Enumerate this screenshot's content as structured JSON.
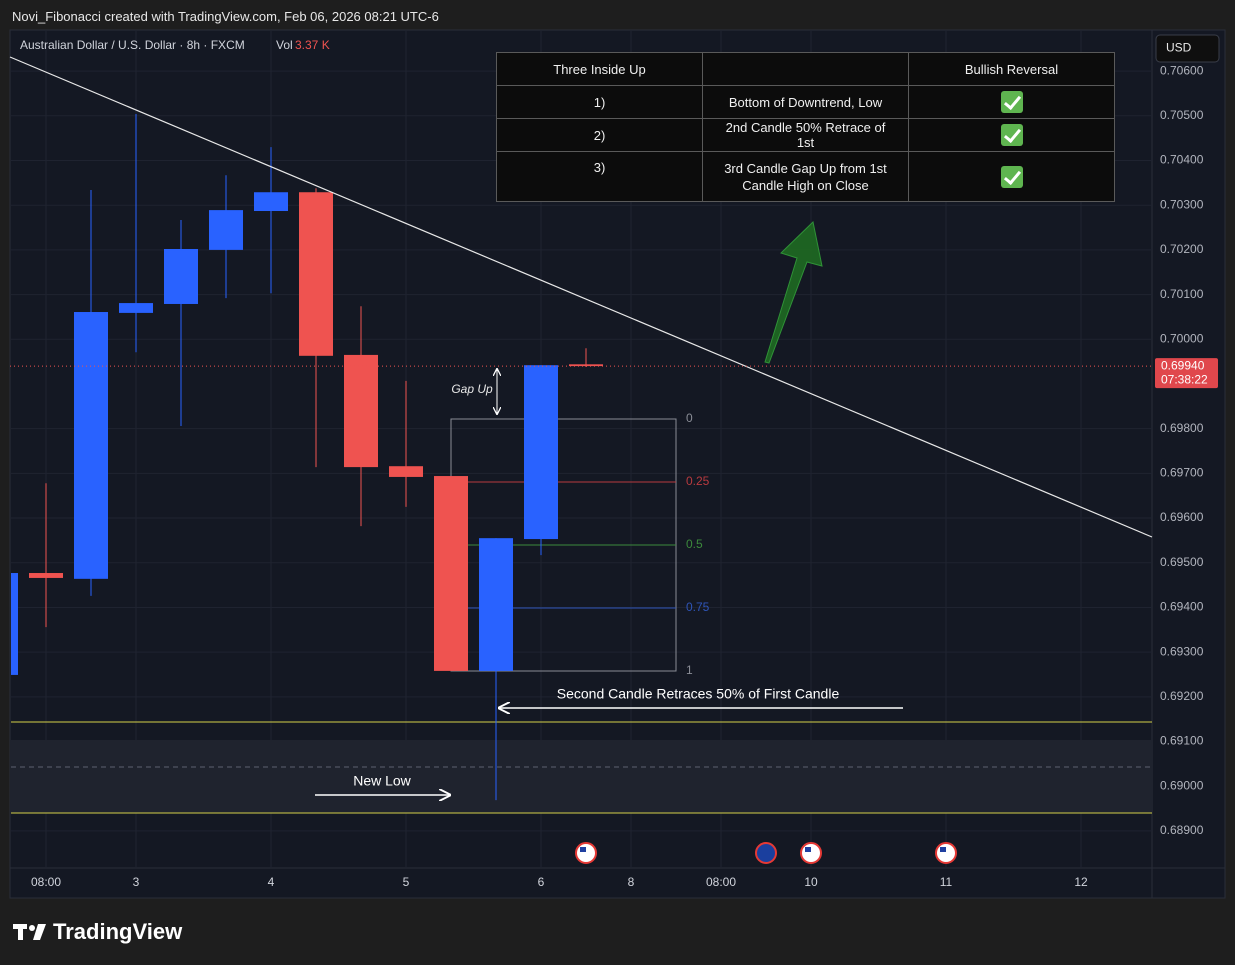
{
  "header": {
    "credit": "Novi_Fibonacci created with TradingView.com, Feb 06, 2026 08:21 UTC-6"
  },
  "chart_data": {
    "type": "candlestick",
    "symbol": "Australian Dollar / U.S. Dollar · 8h · FXCM",
    "volume_label": "Vol",
    "volume": "3.37 K",
    "currency": "USD",
    "categories": [
      null,
      "08:00",
      null,
      "3",
      null,
      null,
      "4",
      null,
      null,
      "5",
      null,
      null,
      "6",
      null,
      "8",
      null,
      "08:00",
      null,
      "10",
      null,
      null,
      "11",
      null,
      null,
      "12",
      null
    ],
    "open": [
      0.69249,
      0.69477,
      0.69464,
      0.70059,
      0.70079,
      0.702,
      0.70287,
      0.70329,
      0.69965,
      0.69716,
      0.69694,
      0.69258,
      0.69553,
      0.69944,
      null,
      null,
      null,
      null,
      null,
      null,
      null,
      null,
      null,
      null,
      null,
      null
    ],
    "high": [
      0.69477,
      0.69678,
      0.70334,
      0.70504,
      0.70267,
      0.70367,
      0.7043,
      0.70338,
      0.70074,
      0.69907,
      0.69694,
      0.69555,
      0.69942,
      0.6998,
      null,
      null,
      null,
      null,
      null,
      null,
      null,
      null,
      null,
      null,
      null,
      null
    ],
    "low": [
      0.69249,
      0.69356,
      0.69426,
      0.69971,
      0.69806,
      0.70092,
      0.70103,
      0.69714,
      0.69582,
      0.69625,
      0.69258,
      0.68969,
      0.69517,
      0.69938,
      null,
      null,
      null,
      null,
      null,
      null,
      null,
      null,
      null,
      null,
      null,
      null
    ],
    "close": [
      0.69477,
      0.69466,
      0.70061,
      0.70081,
      0.70202,
      0.70289,
      0.70329,
      0.69963,
      0.69714,
      0.69692,
      0.69258,
      0.69555,
      0.69942,
      0.6994,
      null,
      null,
      null,
      null,
      null,
      null,
      null,
      null,
      null,
      null,
      null,
      null
    ],
    "up_color": "#2962ff",
    "down_color": "#ef5350",
    "ylim": [
      0.68817,
      0.70692
    ],
    "yticks": [
      {
        "value": 0.706,
        "label": "0.70600"
      },
      {
        "value": 0.705,
        "label": "0.70500"
      },
      {
        "value": 0.704,
        "label": "0.70400"
      },
      {
        "value": 0.703,
        "label": "0.70300"
      },
      {
        "value": 0.702,
        "label": "0.70200"
      },
      {
        "value": 0.701,
        "label": "0.70100"
      },
      {
        "value": 0.7,
        "label": "0.70000"
      },
      {
        "value": 0.698,
        "label": "0.69800"
      },
      {
        "value": 0.697,
        "label": "0.69700"
      },
      {
        "value": 0.696,
        "label": "0.69600"
      },
      {
        "value": 0.695,
        "label": "0.69500"
      },
      {
        "value": 0.694,
        "label": "0.69400"
      },
      {
        "value": 0.693,
        "label": "0.69300"
      },
      {
        "value": 0.692,
        "label": "0.69200"
      },
      {
        "value": 0.691,
        "label": "0.69100"
      },
      {
        "value": 0.69,
        "label": "0.69000"
      },
      {
        "value": 0.689,
        "label": "0.68900"
      }
    ],
    "grid": true,
    "last_price": {
      "value": 0.6994,
      "label": "0.69940"
    },
    "countdown": "07:38:22",
    "fib_levels": [
      0,
      0.25,
      0.5,
      0.75,
      1
    ],
    "fib_colors": [
      "#8a8d96",
      "#b83a3f",
      "#3c8a3c",
      "#2f55b8",
      "#8a8d96"
    ],
    "annotations": {
      "gap_up": "Gap Up",
      "retrace": "Second Candle Retraces 50% of First Candle",
      "new_low": "New Low"
    }
  },
  "table": {
    "header": {
      "title": "Three Inside Up",
      "signal": "Bullish Reversal"
    },
    "rows": [
      [
        "1)",
        "Bottom of Downtrend, Low"
      ],
      [
        "2)",
        "2nd Candle 50% Retrace of 1st"
      ],
      [
        "3)",
        "3rd Candle Gap Up from 1st Candle High on Close"
      ]
    ]
  },
  "branding": "TradingView"
}
